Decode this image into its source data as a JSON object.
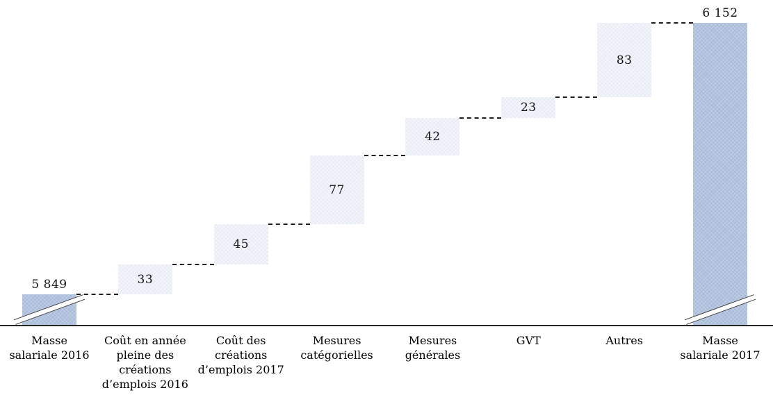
{
  "chart_data": {
    "type": "waterfall",
    "title": "",
    "xlabel": "",
    "ylabel": "",
    "layout_hints": {
      "grid": false,
      "legend": false,
      "axis_break_on_totals": true,
      "connector_style": "dashed",
      "value_labels": "inside deltas, above totals",
      "thousands_separator": "space"
    },
    "colors": {
      "delta_fill": "#e8ecf6",
      "total_fill": "#a9bdda",
      "connector": "#1c1c1c",
      "axis": "#262626",
      "text": "#111111",
      "background": "#ffffff"
    },
    "bars": [
      {
        "kind": "total",
        "value": 5849,
        "display": "5 849",
        "label": "Masse salariale 2016",
        "label_lines": [
          "Masse",
          "salariale 2016"
        ]
      },
      {
        "kind": "delta",
        "value": 33,
        "display": "33",
        "label": "Coût en année pleine des créations d’emplois 2016",
        "label_lines": [
          "Coût en année",
          "pleine des",
          "créations",
          "d’emplois 2016"
        ]
      },
      {
        "kind": "delta",
        "value": 45,
        "display": "45",
        "label": "Coût des créations d’emplois 2017",
        "label_lines": [
          "Coût des",
          "créations",
          "d’emplois 2017"
        ]
      },
      {
        "kind": "delta",
        "value": 77,
        "display": "77",
        "label": "Mesures catégorielles",
        "label_lines": [
          "Mesures",
          "catégorielles"
        ]
      },
      {
        "kind": "delta",
        "value": 42,
        "display": "42",
        "label": "Mesures générales",
        "label_lines": [
          "Mesures",
          "générales"
        ]
      },
      {
        "kind": "delta",
        "value": 23,
        "display": "23",
        "label": "GVT",
        "label_lines": [
          "GVT"
        ]
      },
      {
        "kind": "delta",
        "value": 83,
        "display": "83",
        "label": "Autres",
        "label_lines": [
          "Autres"
        ]
      },
      {
        "kind": "total",
        "value": 6152,
        "display": "6 152",
        "label": "Masse salariale 2017",
        "label_lines": [
          "Masse",
          "salariale 2017"
        ]
      }
    ]
  }
}
